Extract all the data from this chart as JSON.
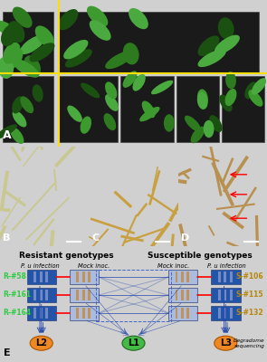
{
  "title": "",
  "panel_E": {
    "bg_color": "#e8eef5",
    "resistant_label": "Resistant genotypes",
    "susceptible_label": "Susceptible genotypes",
    "pu_infection_label": "P. u infection",
    "mock_inoc_label": "Mock inoc.",
    "mock_inoc2_label": "Mock inoc.",
    "pu_infection2_label": "P. u infection",
    "resistant_ids": [
      "R-#58",
      "R-#161",
      "R-#164"
    ],
    "susceptible_ids": [
      "S-#106",
      "S-#115",
      "S-#132"
    ],
    "resistant_color": "#2ecc40",
    "susceptible_color": "#b8860b",
    "dark_blue": "#2255aa",
    "light_blue": "#aabbdd",
    "orange_stripe": "#cc8833",
    "L1_color": "#44bb44",
    "L2_color": "#ee8822",
    "L3_color": "#ee8822",
    "L1_label": "L1",
    "L2_label": "L2",
    "L3_label": "L3",
    "degradome_label": "Degradome\nsequencing",
    "E_label": "E"
  },
  "panel_labels": {
    "A": "A",
    "B": "B",
    "C": "C",
    "D": "D",
    "E": "E"
  },
  "figure_bg": "#d0d0d0"
}
